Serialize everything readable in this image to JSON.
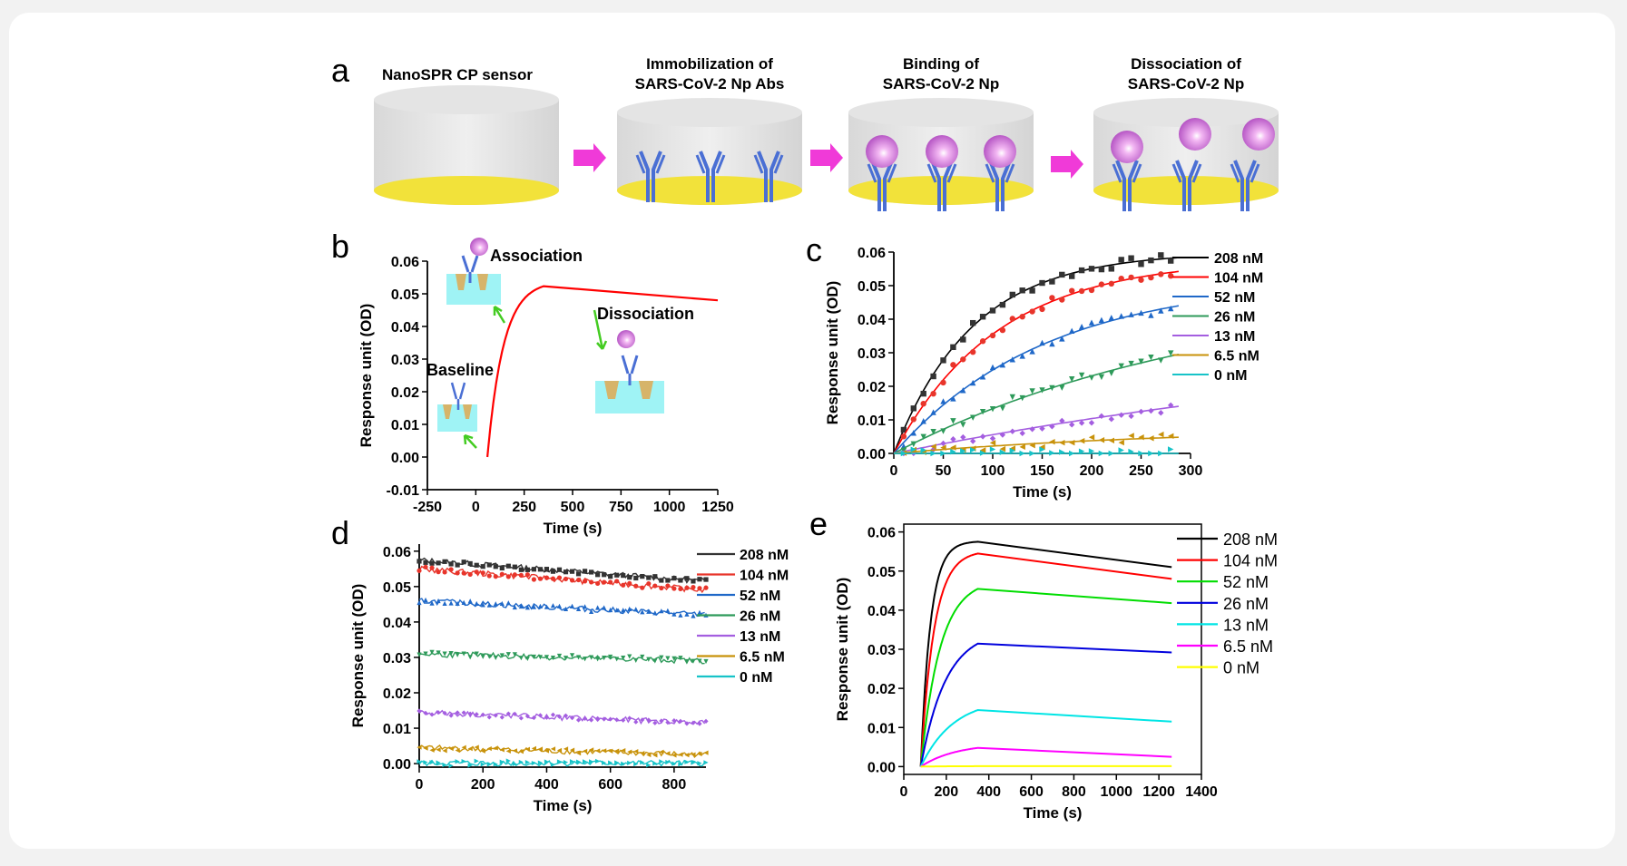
{
  "panel_a": {
    "label": "a",
    "steps": [
      {
        "title_lines": [
          "NanoSPR CP  sensor"
        ]
      },
      {
        "title_lines": [
          "Immobilization of",
          "SARS-CoV-2 Np Abs"
        ]
      },
      {
        "title_lines": [
          "Binding of",
          "SARS-CoV-2 Np"
        ]
      },
      {
        "title_lines": [
          "Dissociation of",
          "SARS-CoV-2 Np"
        ]
      }
    ]
  },
  "chart_data": [
    {
      "id": "b",
      "label": "b",
      "type": "line",
      "xlabel": "Time (s)",
      "ylabel": "Response unit (OD)",
      "xlim": [
        -250,
        1250
      ],
      "ylim": [
        -0.01,
        0.06
      ],
      "xticks": [
        -250,
        0,
        250,
        500,
        750,
        1000,
        1250
      ],
      "yticks": [
        -0.01,
        0.0,
        0.01,
        0.02,
        0.03,
        0.04,
        0.05,
        0.06
      ],
      "xtick_labels": [
        "-250",
        "0",
        "250",
        "500",
        "750",
        "1000",
        "1250"
      ],
      "ytick_labels": [
        "-0.01",
        "0.00",
        "0.01",
        "0.02",
        "0.03",
        "0.04",
        "0.05",
        "0.06"
      ],
      "color": "#ff0000",
      "association_start": 60,
      "association_end": 350,
      "plateau": 0.054,
      "k_on": 0.012,
      "dissociation_end": 1250,
      "end_value": 0.048,
      "annotations": {
        "association": "Association",
        "dissociation": "Dissociation",
        "baseline": "Baseline"
      }
    },
    {
      "id": "c",
      "label": "c",
      "type": "scatter",
      "xlabel": "Time (s)",
      "ylabel": "Response unit (OD)",
      "xlim": [
        0,
        300
      ],
      "ylim": [
        0,
        0.06
      ],
      "xticks": [
        0,
        50,
        100,
        150,
        200,
        250,
        300
      ],
      "yticks": [
        0.0,
        0.01,
        0.02,
        0.03,
        0.04,
        0.05,
        0.06
      ],
      "xtick_labels": [
        "0",
        "50",
        "100",
        "150",
        "200",
        "250",
        "300"
      ],
      "ytick_labels": [
        "0.00",
        "0.01",
        "0.02",
        "0.03",
        "0.04",
        "0.05",
        "0.06"
      ],
      "x_end": 288,
      "series": [
        {
          "name": "208 nM",
          "color": "#333333",
          "plateau": 0.06,
          "k": 0.0125,
          "marker": "square",
          "line_color": "#000000"
        },
        {
          "name": "104 nM",
          "color": "#e8352b",
          "plateau": 0.058,
          "k": 0.0095,
          "marker": "circle",
          "line_color": "#ff0000"
        },
        {
          "name": "52 nM",
          "color": "#1f68c8",
          "plateau": 0.052,
          "k": 0.0065,
          "marker": "triangle-up",
          "line_color": "#1f68c8"
        },
        {
          "name": "26 nM",
          "color": "#2e9a5a",
          "plateau": 0.05,
          "k": 0.0031,
          "marker": "triangle-down",
          "line_color": "#2e9a5a"
        },
        {
          "name": "13 nM",
          "color": "#a45ee0",
          "plateau": 0.04,
          "k": 0.0015,
          "marker": "diamond",
          "line_color": "#a45ee0"
        },
        {
          "name": "6.5 nM",
          "color": "#c8920a",
          "plateau": 0.008,
          "k": 0.0032,
          "marker": "triangle-left",
          "line_color": "#c8920a"
        },
        {
          "name": "0 nM",
          "color": "#17c3c8",
          "plateau": 0.0,
          "k": 0.01,
          "marker": "triangle-right",
          "line_color": "#17c3c8"
        }
      ]
    },
    {
      "id": "d",
      "label": "d",
      "type": "scatter",
      "xlabel": "Time (s)",
      "ylabel": "Response unit (OD)",
      "xlim": [
        0,
        900
      ],
      "ylim": [
        -0.001,
        0.062
      ],
      "xticks": [
        0,
        200,
        400,
        600,
        800
      ],
      "yticks": [
        0.0,
        0.01,
        0.02,
        0.03,
        0.04,
        0.05,
        0.06
      ],
      "xtick_labels": [
        "0",
        "200",
        "400",
        "600",
        "800"
      ],
      "ytick_labels": [
        "0.00",
        "0.01",
        "0.02",
        "0.03",
        "0.04",
        "0.05",
        "0.06"
      ],
      "x_end": 900,
      "series": [
        {
          "name": "208 nM",
          "color": "#333333",
          "start": 0.0575,
          "end": 0.0515,
          "marker": "square"
        },
        {
          "name": "104 nM",
          "color": "#e8352b",
          "start": 0.055,
          "end": 0.049,
          "marker": "circle"
        },
        {
          "name": "52 nM",
          "color": "#1f68c8",
          "start": 0.046,
          "end": 0.042,
          "marker": "triangle-up"
        },
        {
          "name": "26 nM",
          "color": "#2e9a5a",
          "start": 0.031,
          "end": 0.029,
          "marker": "triangle-down"
        },
        {
          "name": "13 nM",
          "color": "#a45ee0",
          "start": 0.0145,
          "end": 0.0115,
          "marker": "diamond"
        },
        {
          "name": "6.5 nM",
          "color": "#c8920a",
          "start": 0.0045,
          "end": 0.0025,
          "marker": "triangle-left"
        },
        {
          "name": "0 nM",
          "color": "#17c3c8",
          "start": 0.0001,
          "end": 0.0001,
          "marker": "triangle-right"
        }
      ]
    },
    {
      "id": "e",
      "label": "e",
      "type": "line",
      "xlabel": "Time (s)",
      "ylabel": "Response unit (OD)",
      "xlim": [
        0,
        1400
      ],
      "ylim": [
        -0.002,
        0.062
      ],
      "xticks": [
        0,
        200,
        400,
        600,
        800,
        1000,
        1200,
        1400
      ],
      "yticks": [
        0.0,
        0.01,
        0.02,
        0.03,
        0.04,
        0.05,
        0.06
      ],
      "xtick_labels": [
        "0",
        "200",
        "400",
        "600",
        "800",
        "1000",
        "1200",
        "1400"
      ],
      "ytick_labels": [
        "0.00",
        "0.01",
        "0.02",
        "0.03",
        "0.04",
        "0.05",
        "0.06"
      ],
      "association_start": 80,
      "association_end": 350,
      "dissociation_end": 1260,
      "series": [
        {
          "name": "208 nM",
          "color": "#000000",
          "peak": 0.0575,
          "end": 0.051,
          "k": 0.022
        },
        {
          "name": "104 nM",
          "color": "#ff0000",
          "peak": 0.0545,
          "end": 0.048,
          "k": 0.016
        },
        {
          "name": "52 nM",
          "color": "#00dd00",
          "peak": 0.0455,
          "end": 0.0418,
          "k": 0.011
        },
        {
          "name": "26 nM",
          "color": "#0000dd",
          "peak": 0.0315,
          "end": 0.0292,
          "k": 0.0085
        },
        {
          "name": "13 nM",
          "color": "#00e5e5",
          "peak": 0.0145,
          "end": 0.0115,
          "k": 0.0065
        },
        {
          "name": "6.5 nM",
          "color": "#ff00ff",
          "peak": 0.0048,
          "end": 0.0025,
          "k": 0.006
        },
        {
          "name": "0 nM",
          "color": "#ffff00",
          "peak": 0.0001,
          "end": 0.0001,
          "k": 0.01
        }
      ]
    }
  ]
}
